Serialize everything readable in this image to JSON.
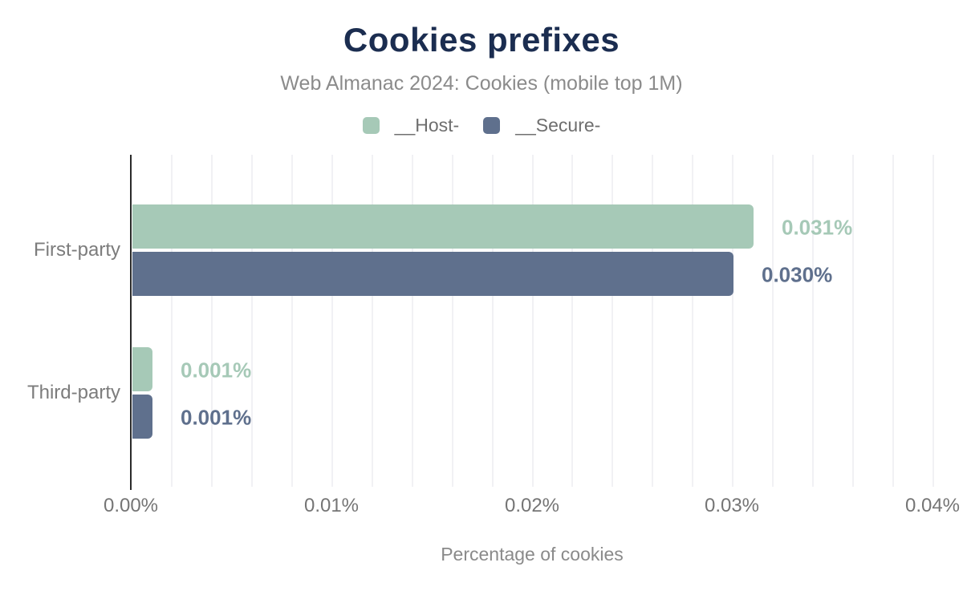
{
  "chart_data": {
    "type": "bar",
    "orientation": "horizontal",
    "title": "Cookies prefixes",
    "subtitle": "Web Almanac 2024: Cookies (mobile top 1M)",
    "xlabel": "Percentage of cookies",
    "categories": [
      "First-party",
      "Third-party"
    ],
    "series": [
      {
        "name": "__Host-",
        "color": "#a6c9b7",
        "values": [
          0.031,
          0.001
        ],
        "value_labels": [
          "0.031%",
          "0.001%"
        ]
      },
      {
        "name": "__Secure-",
        "color": "#5f708d",
        "values": [
          0.03,
          0.001
        ],
        "value_labels": [
          "0.030%",
          "0.001%"
        ]
      }
    ],
    "xlim": [
      0,
      0.04
    ],
    "xticks": [
      0,
      0.01,
      0.02,
      0.03,
      0.04
    ],
    "xtick_labels": [
      "0.00%",
      "0.01%",
      "0.02%",
      "0.03%",
      "0.04%"
    ],
    "grid": "vertical minor gridlines every 0.002%, light gray, no horizontal gridlines",
    "legend_position": "top-center"
  },
  "colors": {
    "title": "#1b2d50",
    "subtitle": "#8b8b8b",
    "host_series": "#a6c9b7",
    "secure_series": "#5f708d",
    "axis_line": "#2b2b2b",
    "gridline": "#f1f1f4",
    "tick_text": "#757575",
    "category_text": "#7c7c7c",
    "background": "#ffffff"
  }
}
